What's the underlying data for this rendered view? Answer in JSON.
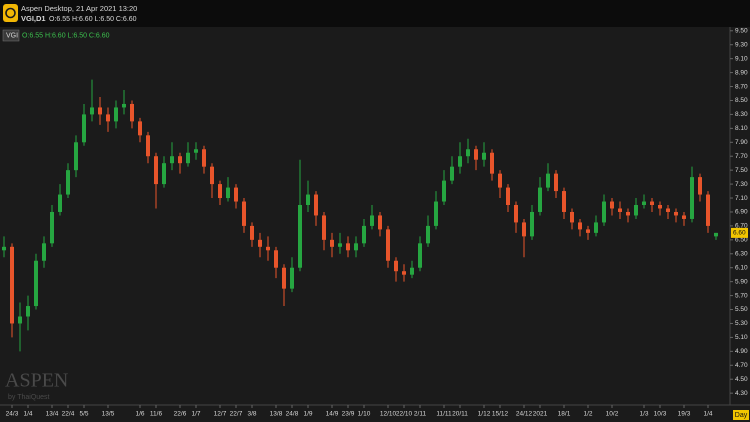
{
  "header": {
    "title": "Aspen Desktop, 21 Apr 2021 13:20",
    "symbol": "VGI,D1",
    "ohlc": "O:6.55 H:6.60 L:6.50 C:6.60"
  },
  "chart_data": {
    "type": "candlestick",
    "title": "VGI",
    "subtitle": "O:6.55 H:6.60 L:6.50 C:6.60",
    "period": "Day",
    "watermark": "ASPEN",
    "watermark_sub": "by ThaiQuest",
    "last_price": {
      "value": 6.6,
      "label": "6.60"
    },
    "up_color": "#26a641",
    "down_color": "#e8552b",
    "grid": false,
    "categories": [
      null,
      "24/3",
      null,
      "1/4",
      null,
      null,
      "13/4",
      null,
      "22/4",
      null,
      "5/5",
      null,
      null,
      "13/5",
      null,
      null,
      null,
      "1/6",
      null,
      "11/6",
      null,
      null,
      "22/6",
      null,
      "1/7",
      null,
      null,
      "12/7",
      null,
      "22/7",
      null,
      "3/8",
      null,
      null,
      "13/8",
      null,
      "24/8",
      null,
      "1/9",
      null,
      null,
      "14/9",
      null,
      "23/9",
      null,
      "1/10",
      null,
      null,
      "12/10",
      null,
      "22/10",
      null,
      "2/11",
      null,
      null,
      "11/11",
      null,
      "20/11",
      null,
      null,
      "1/12",
      null,
      "15/12",
      null,
      null,
      "24/12",
      null,
      "2021",
      null,
      null,
      "18/1",
      null,
      null,
      "1/2",
      null,
      null,
      "10/2",
      null,
      null,
      null,
      "1/3",
      null,
      "10/3",
      null,
      null,
      "19/3",
      null,
      null,
      "1/4",
      null
    ],
    "open": [
      6.35,
      6.4,
      5.3,
      5.4,
      5.55,
      6.2,
      6.45,
      6.9,
      7.15,
      7.5,
      7.9,
      8.3,
      8.4,
      8.3,
      8.2,
      8.4,
      8.45,
      8.2,
      8.0,
      7.7,
      7.3,
      7.6,
      7.7,
      7.6,
      7.75,
      7.8,
      7.55,
      7.3,
      7.1,
      7.25,
      7.05,
      6.7,
      6.5,
      6.4,
      6.35,
      6.1,
      5.8,
      6.1,
      7.0,
      7.15,
      6.85,
      6.5,
      6.4,
      6.45,
      6.35,
      6.45,
      6.7,
      6.85,
      6.65,
      6.2,
      6.05,
      6.0,
      6.1,
      6.45,
      6.7,
      7.05,
      7.35,
      7.55,
      7.7,
      7.8,
      7.65,
      7.75,
      7.45,
      7.25,
      7.0,
      6.75,
      6.55,
      6.9,
      7.25,
      7.45,
      7.2,
      6.9,
      6.75,
      6.65,
      6.6,
      6.75,
      7.05,
      6.95,
      6.9,
      6.85,
      7.0,
      7.05,
      7.0,
      6.95,
      6.9,
      6.85,
      6.8,
      7.4,
      7.15,
      6.55
    ],
    "high": [
      6.55,
      6.45,
      5.6,
      5.7,
      6.3,
      6.55,
      7.0,
      7.3,
      7.6,
      8.0,
      8.45,
      8.8,
      8.55,
      8.4,
      8.5,
      8.65,
      8.5,
      8.25,
      8.05,
      7.75,
      7.7,
      7.9,
      7.75,
      7.9,
      7.9,
      7.85,
      7.6,
      7.35,
      7.4,
      7.3,
      7.1,
      6.75,
      6.6,
      6.55,
      6.4,
      6.15,
      6.25,
      7.65,
      7.35,
      7.2,
      6.9,
      6.6,
      6.6,
      6.55,
      6.55,
      6.8,
      7.0,
      6.9,
      6.7,
      6.25,
      6.15,
      6.2,
      6.55,
      6.85,
      7.2,
      7.5,
      7.7,
      7.9,
      7.95,
      7.85,
      7.9,
      7.8,
      7.5,
      7.3,
      7.05,
      6.8,
      7.0,
      7.4,
      7.6,
      7.5,
      7.25,
      6.95,
      6.8,
      6.7,
      6.85,
      7.15,
      7.1,
      7.05,
      6.95,
      7.1,
      7.15,
      7.1,
      7.05,
      7.0,
      6.95,
      6.9,
      7.55,
      7.45,
      7.2,
      6.6
    ],
    "low": [
      6.25,
      5.1,
      4.9,
      5.2,
      5.5,
      6.1,
      6.4,
      6.85,
      7.1,
      7.4,
      7.85,
      8.2,
      8.15,
      8.05,
      8.1,
      8.3,
      8.1,
      7.9,
      7.6,
      6.95,
      7.25,
      7.5,
      7.45,
      7.55,
      7.65,
      7.45,
      7.1,
      7.0,
      7.05,
      6.95,
      6.6,
      6.4,
      6.25,
      6.2,
      5.95,
      5.55,
      5.75,
      6.05,
      6.9,
      6.7,
      6.35,
      6.25,
      6.3,
      6.25,
      6.25,
      6.4,
      6.65,
      6.55,
      6.1,
      5.9,
      5.9,
      5.95,
      6.05,
      6.4,
      6.65,
      7.0,
      7.3,
      7.45,
      7.6,
      7.5,
      7.55,
      7.35,
      7.1,
      6.9,
      6.6,
      6.25,
      6.5,
      6.85,
      7.2,
      7.1,
      6.8,
      6.65,
      6.55,
      6.5,
      6.55,
      6.7,
      6.85,
      6.8,
      6.75,
      6.8,
      6.95,
      6.9,
      6.85,
      6.8,
      6.75,
      6.7,
      6.75,
      7.05,
      6.6,
      6.5
    ],
    "close": [
      6.4,
      5.3,
      5.4,
      5.55,
      6.2,
      6.45,
      6.9,
      7.15,
      7.5,
      7.9,
      8.3,
      8.4,
      8.3,
      8.2,
      8.4,
      8.45,
      8.2,
      8.0,
      7.7,
      7.3,
      7.6,
      7.7,
      7.6,
      7.75,
      7.8,
      7.55,
      7.3,
      7.1,
      7.25,
      7.05,
      6.7,
      6.5,
      6.4,
      6.35,
      6.1,
      5.8,
      6.1,
      7.0,
      7.15,
      6.85,
      6.5,
      6.4,
      6.45,
      6.35,
      6.45,
      6.7,
      6.85,
      6.65,
      6.2,
      6.05,
      6.0,
      6.1,
      6.45,
      6.7,
      7.05,
      7.35,
      7.55,
      7.7,
      7.8,
      7.65,
      7.75,
      7.45,
      7.25,
      7.0,
      6.75,
      6.55,
      6.9,
      7.25,
      7.45,
      7.2,
      6.9,
      6.75,
      6.65,
      6.6,
      6.75,
      7.05,
      6.95,
      6.9,
      6.85,
      7.0,
      7.05,
      7.0,
      6.95,
      6.9,
      6.85,
      6.8,
      7.4,
      7.15,
      6.7,
      6.6
    ],
    "ylim": [
      4.13,
      9.54
    ],
    "yticks": [
      {
        "value": 4.3,
        "label": "4.30"
      },
      {
        "value": 4.5,
        "label": "4.50"
      },
      {
        "value": 4.7,
        "label": "4.70"
      },
      {
        "value": 4.9,
        "label": "4.90"
      },
      {
        "value": 5.1,
        "label": "5.10"
      },
      {
        "value": 5.3,
        "label": "5.30"
      },
      {
        "value": 5.5,
        "label": "5.50"
      },
      {
        "value": 5.7,
        "label": "5.70"
      },
      {
        "value": 5.9,
        "label": "5.90"
      },
      {
        "value": 6.1,
        "label": "6.10"
      },
      {
        "value": 6.3,
        "label": "6.30"
      },
      {
        "value": 6.5,
        "label": "6.50"
      },
      {
        "value": 6.7,
        "label": "6.70"
      },
      {
        "value": 6.9,
        "label": "6.90"
      },
      {
        "value": 7.1,
        "label": "7.10"
      },
      {
        "value": 7.3,
        "label": "7.30"
      },
      {
        "value": 7.5,
        "label": "7.50"
      },
      {
        "value": 7.7,
        "label": "7.70"
      },
      {
        "value": 7.9,
        "label": "7.90"
      },
      {
        "value": 8.1,
        "label": "8.10"
      },
      {
        "value": 8.3,
        "label": "8.30"
      },
      {
        "value": 8.5,
        "label": "8.50"
      },
      {
        "value": 8.7,
        "label": "8.70"
      },
      {
        "value": 8.9,
        "label": "8.90"
      },
      {
        "value": 9.1,
        "label": "9.10"
      },
      {
        "value": 9.3,
        "label": "9.30"
      },
      {
        "value": 9.5,
        "label": "9.50"
      }
    ]
  }
}
